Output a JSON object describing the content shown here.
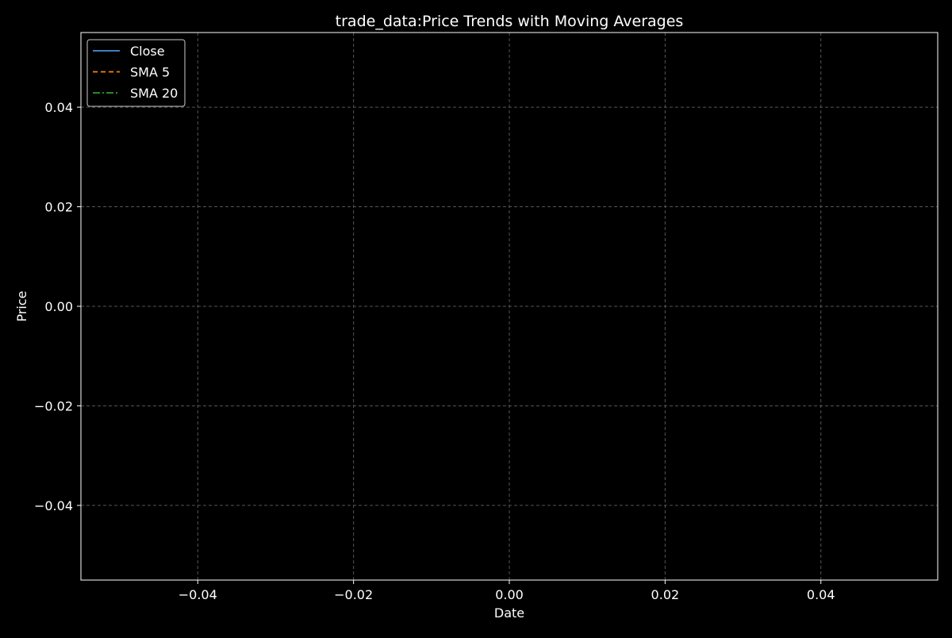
{
  "chart_data": {
    "type": "line",
    "title": "trade_data:Price Trends with Moving Averages",
    "xlabel": "Date",
    "ylabel": "Price",
    "xlim": [
      -0.055,
      0.055
    ],
    "ylim": [
      -0.055,
      0.055
    ],
    "x_ticks": [
      -0.04,
      -0.02,
      0.0,
      0.02,
      0.04
    ],
    "y_ticks": [
      -0.04,
      -0.02,
      0.0,
      0.02,
      0.04
    ],
    "x_tick_labels": [
      "−0.04",
      "−0.02",
      "0.00",
      "0.02",
      "0.04"
    ],
    "y_tick_labels": [
      "−0.04",
      "−0.02",
      "0.00",
      "0.02",
      "0.04"
    ],
    "grid": true,
    "legend_position": "top-left",
    "series": [
      {
        "name": "Close",
        "x": [],
        "values": [],
        "color": "#4a90d9",
        "line_style": "solid"
      },
      {
        "name": "SMA 5",
        "x": [],
        "values": [],
        "color": "#ff7f0e",
        "line_style": "dashed"
      },
      {
        "name": "SMA 20",
        "x": [],
        "values": [],
        "color": "#2ca02c",
        "line_style": "dashdot"
      }
    ],
    "colors": {
      "background": "#000000",
      "axes": "#ffffff",
      "grid": "#555555",
      "text": "#ffffff"
    }
  }
}
